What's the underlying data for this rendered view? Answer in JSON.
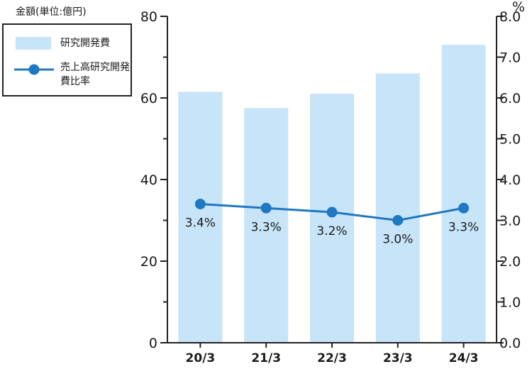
{
  "unit_label": "金額(単位:億円)",
  "legend": {
    "bar_label": "研究開発費",
    "line_label": "売上高研究開発費比率"
  },
  "colors": {
    "bar": "#c8e4f8",
    "line": "#1f78c1",
    "axis": "#222222"
  },
  "chart_data": {
    "type": "bar",
    "categories": [
      "20/3",
      "21/3",
      "22/3",
      "23/3",
      "24/3"
    ],
    "series": [
      {
        "name": "研究開発費",
        "type": "bar",
        "axis": "left",
        "values": [
          61.5,
          57.5,
          61,
          66,
          73
        ]
      },
      {
        "name": "売上高研究開発費比率",
        "type": "line",
        "axis": "right",
        "values": [
          3.4,
          3.3,
          3.2,
          3.0,
          3.3
        ],
        "labels": [
          "3.4%",
          "3.3%",
          "3.2%",
          "3.0%",
          "3.3%"
        ]
      }
    ],
    "y_left": {
      "range": [
        0,
        80
      ],
      "ticks": [
        0,
        20,
        40,
        60,
        80
      ]
    },
    "y_right": {
      "range": [
        0,
        8
      ],
      "ticks": [
        "0.0",
        "1.0",
        "2.0",
        "3.0",
        "4.0",
        "5.0",
        "6.0",
        "7.0",
        "8.0"
      ],
      "unit": "%"
    },
    "legend_position": "top-left",
    "grid": false
  }
}
